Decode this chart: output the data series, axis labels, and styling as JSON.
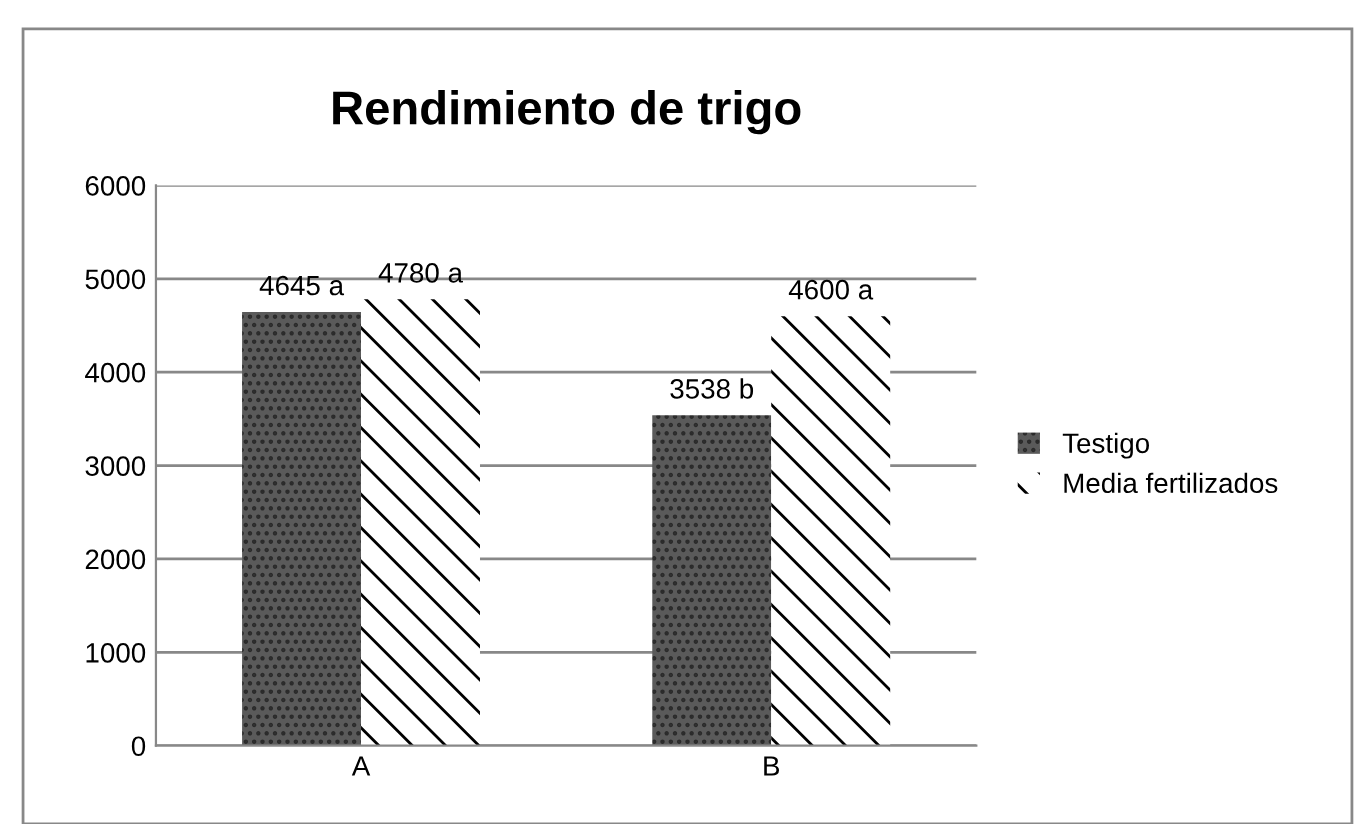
{
  "chart_data": {
    "type": "bar",
    "title": "Rendimiento de trigo",
    "categories": [
      "A",
      "B"
    ],
    "series": [
      {
        "name": "Testigo",
        "color": "#5a5a5a",
        "values": [
          4645,
          3538
        ],
        "value_labels": [
          "4645 a",
          "3538 b"
        ]
      },
      {
        "name": "Media fertilizados",
        "color": "#ffffff",
        "values": [
          4780,
          4600
        ],
        "value_labels": [
          "4780 a",
          "4600 a"
        ]
      }
    ],
    "ylim": [
      0,
      6000
    ],
    "yticks": [
      0,
      1000,
      2000,
      3000,
      4000,
      5000,
      6000
    ],
    "grid": "y",
    "legend": "right"
  }
}
